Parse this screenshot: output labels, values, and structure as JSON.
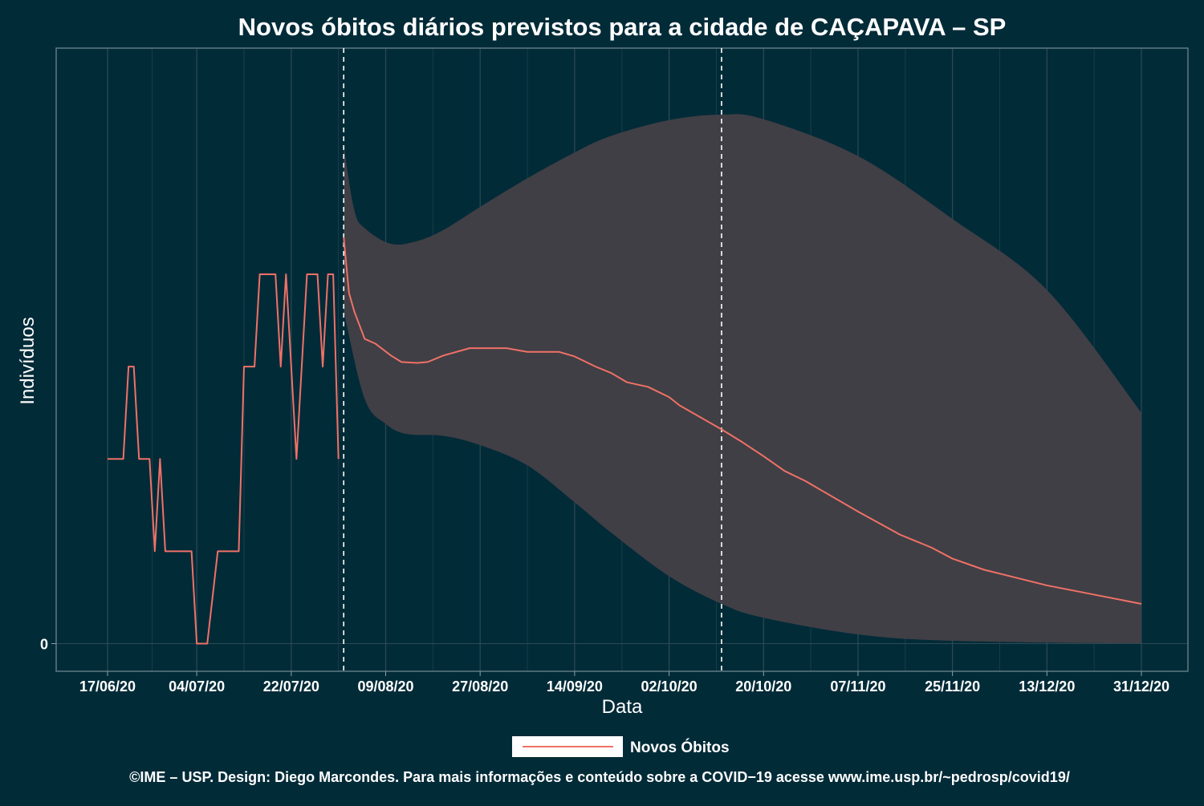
{
  "chart_data": {
    "type": "line",
    "title": "Novos óbitos diários previstos para a cidade de CAÇAPAVA – SP",
    "xlabel": "Data",
    "ylabel": "Indivíduos",
    "x_axis": {
      "type": "date",
      "start": "2020-06-17",
      "end": "2020-12-31",
      "ticks": [
        "2020-06-17",
        "2020-07-04",
        "2020-07-22",
        "2020-08-09",
        "2020-08-27",
        "2020-09-14",
        "2020-10-02",
        "2020-10-20",
        "2020-11-07",
        "2020-11-25",
        "2020-12-13",
        "2020-12-31"
      ],
      "tick_labels": [
        "17/06/20",
        "04/07/20",
        "22/07/20",
        "09/08/20",
        "27/08/20",
        "14/09/20",
        "02/10/20",
        "20/10/20",
        "07/11/20",
        "25/11/20",
        "13/12/20",
        "31/12/20"
      ]
    },
    "y_axis": {
      "tick_labels": [
        "0"
      ],
      "ticks": [
        0
      ],
      "ylim": [
        -0.3,
        6.45
      ]
    },
    "grid": true,
    "legend": {
      "position": "bottom",
      "entries": [
        "Novos Óbitos"
      ]
    },
    "vlines": [
      "2020-08-01",
      "2020-10-12"
    ],
    "observed": {
      "name": "Novos Óbitos",
      "color": "#f07167",
      "points": [
        [
          "2020-06-17",
          2
        ],
        [
          "2020-06-20",
          2
        ],
        [
          "2020-06-21",
          3
        ],
        [
          "2020-06-22",
          3
        ],
        [
          "2020-06-23",
          2
        ],
        [
          "2020-06-25",
          2
        ],
        [
          "2020-06-26",
          1
        ],
        [
          "2020-06-27",
          2
        ],
        [
          "2020-06-28",
          1
        ],
        [
          "2020-07-03",
          1
        ],
        [
          "2020-07-04",
          0
        ],
        [
          "2020-07-06",
          0
        ],
        [
          "2020-07-08",
          1
        ],
        [
          "2020-07-12",
          1
        ],
        [
          "2020-07-13",
          3
        ],
        [
          "2020-07-15",
          3
        ],
        [
          "2020-07-16",
          4
        ],
        [
          "2020-07-19",
          4
        ],
        [
          "2020-07-20",
          3
        ],
        [
          "2020-07-21",
          4
        ],
        [
          "2020-07-23",
          2
        ],
        [
          "2020-07-25",
          4
        ],
        [
          "2020-07-27",
          4
        ],
        [
          "2020-07-28",
          3
        ],
        [
          "2020-07-29",
          4
        ],
        [
          "2020-07-30",
          4
        ],
        [
          "2020-07-31",
          2
        ]
      ]
    },
    "forecast": {
      "name": "Novos Óbitos",
      "color": "#f07167",
      "band_color": "#403f45",
      "points": [
        [
          "2020-08-01",
          4.4
        ],
        [
          "2020-08-02",
          3.8
        ],
        [
          "2020-08-03",
          3.6
        ],
        [
          "2020-08-05",
          3.3
        ],
        [
          "2020-08-07",
          3.25
        ],
        [
          "2020-08-10",
          3.12
        ],
        [
          "2020-08-12",
          3.05
        ],
        [
          "2020-08-15",
          3.04
        ],
        [
          "2020-08-17",
          3.05
        ],
        [
          "2020-08-20",
          3.12
        ],
        [
          "2020-08-25",
          3.2
        ],
        [
          "2020-08-27",
          3.2
        ],
        [
          "2020-09-01",
          3.2
        ],
        [
          "2020-09-05",
          3.16
        ],
        [
          "2020-09-11",
          3.16
        ],
        [
          "2020-09-14",
          3.11
        ],
        [
          "2020-09-18",
          3.0
        ],
        [
          "2020-09-21",
          2.93
        ],
        [
          "2020-09-24",
          2.83
        ],
        [
          "2020-09-28",
          2.78
        ],
        [
          "2020-10-02",
          2.67
        ],
        [
          "2020-10-04",
          2.58
        ],
        [
          "2020-10-12",
          2.32
        ],
        [
          "2020-10-16",
          2.18
        ],
        [
          "2020-10-20",
          2.03
        ],
        [
          "2020-10-24",
          1.87
        ],
        [
          "2020-10-28",
          1.76
        ],
        [
          "2020-11-07",
          1.43
        ],
        [
          "2020-11-15",
          1.18
        ],
        [
          "2020-11-21",
          1.04
        ],
        [
          "2020-11-25",
          0.92
        ],
        [
          "2020-12-01",
          0.8
        ],
        [
          "2020-12-13",
          0.63
        ],
        [
          "2020-12-31",
          0.43
        ]
      ],
      "upper": [
        [
          "2020-08-01",
          5.4
        ],
        [
          "2020-08-03",
          4.7
        ],
        [
          "2020-08-05",
          4.5
        ],
        [
          "2020-08-10",
          4.33
        ],
        [
          "2020-08-15",
          4.36
        ],
        [
          "2020-08-20",
          4.48
        ],
        [
          "2020-08-27",
          4.73
        ],
        [
          "2020-09-05",
          5.04
        ],
        [
          "2020-09-14",
          5.32
        ],
        [
          "2020-09-21",
          5.5
        ],
        [
          "2020-10-02",
          5.67
        ],
        [
          "2020-10-12",
          5.73
        ],
        [
          "2020-10-20",
          5.68
        ],
        [
          "2020-11-07",
          5.28
        ],
        [
          "2020-11-25",
          4.6
        ],
        [
          "2020-12-13",
          3.83
        ],
        [
          "2020-12-31",
          2.5
        ]
      ],
      "lower": [
        [
          "2020-08-01",
          3.6
        ],
        [
          "2020-08-05",
          2.65
        ],
        [
          "2020-08-09",
          2.38
        ],
        [
          "2020-08-13",
          2.27
        ],
        [
          "2020-08-20",
          2.25
        ],
        [
          "2020-08-27",
          2.15
        ],
        [
          "2020-09-05",
          1.93
        ],
        [
          "2020-09-14",
          1.53
        ],
        [
          "2020-09-21",
          1.2
        ],
        [
          "2020-10-02",
          0.73
        ],
        [
          "2020-10-12",
          0.43
        ],
        [
          "2020-10-20",
          0.28
        ],
        [
          "2020-11-07",
          0.1
        ],
        [
          "2020-11-25",
          0.03
        ],
        [
          "2020-12-31",
          0.0
        ]
      ]
    }
  },
  "footer": {
    "credit": "©IME – USP. Design: Diego Marcondes. Para mais informações e conteúdo sobre a COVID−19 acesse www.ime.usp.br/~pedrosp/covid19/"
  }
}
